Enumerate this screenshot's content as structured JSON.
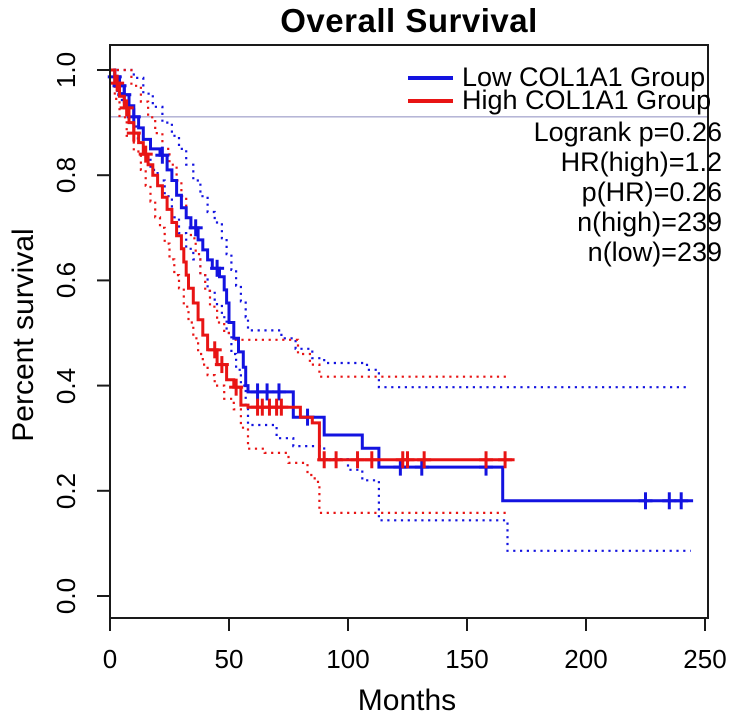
{
  "title": "Overall Survival",
  "axes": {
    "x": {
      "label": "Months",
      "tick_labels": [
        "0",
        "50",
        "100",
        "150",
        "200",
        "250"
      ],
      "tick_values": [
        0,
        50,
        100,
        150,
        200,
        250
      ],
      "range": [
        0,
        250
      ]
    },
    "y": {
      "label": "Percent survival",
      "tick_labels": [
        "0.0",
        "0.2",
        "0.4",
        "0.6",
        "0.8",
        "1.0"
      ],
      "tick_values": [
        0,
        0.2,
        0.4,
        0.6,
        0.8,
        1.0
      ],
      "range": [
        0,
        1
      ]
    }
  },
  "legend": {
    "entries": [
      {
        "label": "Low COL1A1 Group",
        "color": "#1313E0"
      },
      {
        "label": "High COL1A1 Group",
        "color": "#E81414"
      }
    ]
  },
  "stats": {
    "lines": [
      "Logrank p=0.26",
      "HR(high)=1.2",
      "p(HR)=0.26",
      "n(high)=239",
      "n(low)=239"
    ]
  },
  "colors": {
    "low_group": "#1313E0",
    "high_group": "#E81414",
    "reference_line": "#ABABD0",
    "axis": "#1a1a1a",
    "text": "#000000"
  },
  "chart_data": {
    "type": "line",
    "subtype": "kaplan-meier-step",
    "title": "Overall Survival",
    "xlabel": "Months",
    "ylabel": "Percent survival",
    "xlim": [
      0,
      250
    ],
    "ylim": [
      0,
      1
    ],
    "grid": false,
    "legend_position": "top-right",
    "reference_line_y": 0.911,
    "series": [
      {
        "name": "Low COL1A1 Group",
        "role": "survival",
        "color": "#1313E0",
        "style": "solid",
        "steps": [
          [
            0,
            1
          ],
          [
            2,
            0.987
          ],
          [
            4,
            0.97
          ],
          [
            6,
            0.953
          ],
          [
            8,
            0.932
          ],
          [
            10,
            0.911
          ],
          [
            12,
            0.89
          ],
          [
            14,
            0.868
          ],
          [
            17,
            0.85
          ],
          [
            21,
            0.838
          ],
          [
            24,
            0.81
          ],
          [
            26,
            0.79
          ],
          [
            28,
            0.762
          ],
          [
            30,
            0.738
          ],
          [
            32,
            0.719
          ],
          [
            34,
            0.7
          ],
          [
            37,
            0.677
          ],
          [
            39,
            0.658
          ],
          [
            41,
            0.639
          ],
          [
            43,
            0.623
          ],
          [
            46,
            0.607
          ],
          [
            48,
            0.582
          ],
          [
            49,
            0.557
          ],
          [
            50,
            0.52
          ],
          [
            52,
            0.49
          ],
          [
            54,
            0.464
          ],
          [
            56,
            0.435
          ],
          [
            57,
            0.4
          ],
          [
            58,
            0.388
          ],
          [
            77,
            0.34
          ],
          [
            90,
            0.306
          ],
          [
            106,
            0.281
          ],
          [
            113,
            0.245
          ],
          [
            165,
            0.181
          ],
          [
            245,
            0.181
          ]
        ],
        "censor_months": [
          2,
          4,
          6,
          10,
          22,
          36,
          45,
          62,
          66,
          71,
          83,
          122,
          131,
          158,
          225,
          235,
          240
        ]
      },
      {
        "name": "High COL1A1 Group",
        "role": "survival",
        "color": "#E81414",
        "style": "solid",
        "steps": [
          [
            0,
            1
          ],
          [
            2,
            0.975
          ],
          [
            4,
            0.95
          ],
          [
            6,
            0.928
          ],
          [
            8,
            0.9
          ],
          [
            10,
            0.88
          ],
          [
            12,
            0.862
          ],
          [
            14,
            0.84
          ],
          [
            16,
            0.82
          ],
          [
            18,
            0.8
          ],
          [
            20,
            0.78
          ],
          [
            22,
            0.758
          ],
          [
            24,
            0.735
          ],
          [
            26,
            0.71
          ],
          [
            28,
            0.685
          ],
          [
            30,
            0.66
          ],
          [
            31,
            0.635
          ],
          [
            32,
            0.61
          ],
          [
            33,
            0.585
          ],
          [
            35,
            0.557
          ],
          [
            37,
            0.525
          ],
          [
            39,
            0.496
          ],
          [
            41,
            0.468
          ],
          [
            45,
            0.44
          ],
          [
            49,
            0.411
          ],
          [
            52,
            0.397
          ],
          [
            55,
            0.363
          ],
          [
            58,
            0.359
          ],
          [
            80,
            0.34
          ],
          [
            85,
            0.329
          ],
          [
            88,
            0.259
          ],
          [
            170,
            0.259
          ]
        ],
        "censor_months": [
          3,
          7,
          10,
          15,
          44,
          47,
          53,
          62,
          64,
          67,
          70,
          72,
          90,
          95,
          104,
          110,
          123,
          125,
          132,
          158,
          166
        ]
      },
      {
        "name": "Low group 95% CI upper",
        "role": "ci",
        "color": "#1313E0",
        "style": "dotted",
        "steps": [
          [
            0,
            1
          ],
          [
            6,
            1
          ],
          [
            10,
            0.985
          ],
          [
            14,
            0.955
          ],
          [
            18,
            0.93
          ],
          [
            22,
            0.9
          ],
          [
            26,
            0.875
          ],
          [
            29,
            0.85
          ],
          [
            32,
            0.82
          ],
          [
            35,
            0.79
          ],
          [
            38,
            0.76
          ],
          [
            41,
            0.73
          ],
          [
            44,
            0.71
          ],
          [
            47,
            0.68
          ],
          [
            49,
            0.65
          ],
          [
            51,
            0.62
          ],
          [
            53,
            0.59
          ],
          [
            55,
            0.56
          ],
          [
            57,
            0.53
          ],
          [
            58,
            0.505
          ],
          [
            72,
            0.49
          ],
          [
            78,
            0.47
          ],
          [
            85,
            0.452
          ],
          [
            90,
            0.443
          ],
          [
            108,
            0.43
          ],
          [
            113,
            0.397
          ],
          [
            242,
            0.397
          ]
        ]
      },
      {
        "name": "Low group 95% CI lower",
        "role": "ci",
        "color": "#1313E0",
        "style": "dotted",
        "steps": [
          [
            0,
            1
          ],
          [
            2,
            0.96
          ],
          [
            5,
            0.935
          ],
          [
            8,
            0.9
          ],
          [
            11,
            0.87
          ],
          [
            14,
            0.84
          ],
          [
            17,
            0.81
          ],
          [
            20,
            0.79
          ],
          [
            23,
            0.76
          ],
          [
            26,
            0.72
          ],
          [
            29,
            0.69
          ],
          [
            32,
            0.66
          ],
          [
            35,
            0.64
          ],
          [
            38,
            0.61
          ],
          [
            41,
            0.58
          ],
          [
            44,
            0.555
          ],
          [
            47,
            0.53
          ],
          [
            49,
            0.5
          ],
          [
            51,
            0.46
          ],
          [
            53,
            0.43
          ],
          [
            55,
            0.4
          ],
          [
            57,
            0.36
          ],
          [
            58,
            0.325
          ],
          [
            70,
            0.3
          ],
          [
            77,
            0.285
          ],
          [
            90,
            0.26
          ],
          [
            100,
            0.24
          ],
          [
            106,
            0.22
          ],
          [
            113,
            0.144
          ],
          [
            165,
            0.144
          ],
          [
            167,
            0.086
          ],
          [
            244,
            0.086
          ]
        ]
      },
      {
        "name": "High group 95% CI upper",
        "role": "ci",
        "color": "#E81414",
        "style": "dotted",
        "steps": [
          [
            0,
            1
          ],
          [
            5,
            1
          ],
          [
            9,
            0.97
          ],
          [
            13,
            0.94
          ],
          [
            16,
            0.91
          ],
          [
            19,
            0.88
          ],
          [
            22,
            0.85
          ],
          [
            25,
            0.82
          ],
          [
            28,
            0.79
          ],
          [
            30,
            0.76
          ],
          [
            32,
            0.72
          ],
          [
            34,
            0.68
          ],
          [
            36,
            0.65
          ],
          [
            38,
            0.61
          ],
          [
            40,
            0.58
          ],
          [
            42,
            0.55
          ],
          [
            45,
            0.52
          ],
          [
            48,
            0.5
          ],
          [
            52,
            0.487
          ],
          [
            75,
            0.487
          ],
          [
            79,
            0.46
          ],
          [
            84,
            0.44
          ],
          [
            88,
            0.417
          ],
          [
            167,
            0.417
          ]
        ]
      },
      {
        "name": "High group 95% CI lower",
        "role": "ci",
        "color": "#E81414",
        "style": "dotted",
        "steps": [
          [
            0,
            1
          ],
          [
            2,
            0.945
          ],
          [
            4,
            0.91
          ],
          [
            7,
            0.875
          ],
          [
            10,
            0.845
          ],
          [
            13,
            0.81
          ],
          [
            15,
            0.78
          ],
          [
            17,
            0.75
          ],
          [
            19,
            0.72
          ],
          [
            21,
            0.7
          ],
          [
            23,
            0.67
          ],
          [
            25,
            0.64
          ],
          [
            27,
            0.61
          ],
          [
            29,
            0.585
          ],
          [
            31,
            0.55
          ],
          [
            33,
            0.52
          ],
          [
            35,
            0.49
          ],
          [
            37,
            0.46
          ],
          [
            39,
            0.44
          ],
          [
            41,
            0.42
          ],
          [
            44,
            0.4
          ],
          [
            48,
            0.375
          ],
          [
            52,
            0.355
          ],
          [
            55,
            0.32
          ],
          [
            58,
            0.28
          ],
          [
            65,
            0.272
          ],
          [
            75,
            0.253
          ],
          [
            83,
            0.23
          ],
          [
            86,
            0.217
          ],
          [
            88,
            0.158
          ],
          [
            167,
            0.158
          ]
        ]
      }
    ]
  }
}
